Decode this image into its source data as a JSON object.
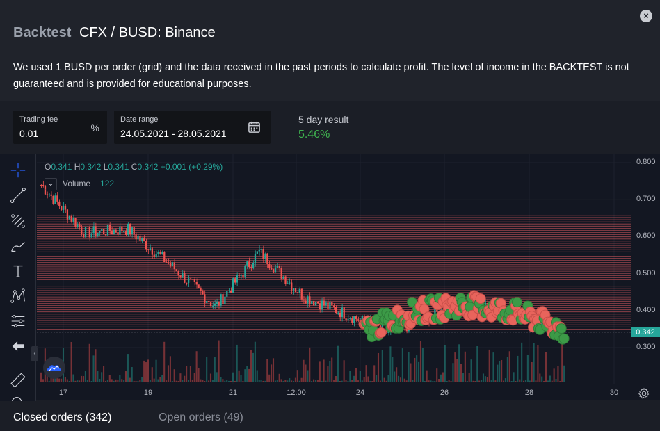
{
  "header": {
    "brand": "Backtest",
    "pair": "CFX / BUSD: Binance",
    "description": "We used 1 BUSD per order (grid) and the data received in the past periods to calculate profit. The level of income in the BACKTEST is not guaranteed and is provided for educational purposes."
  },
  "params": {
    "fee_label": "Trading fee",
    "fee_value": "0.01",
    "fee_suffix": "%",
    "date_label": "Date range",
    "date_value": "24.05.2021 - 28.05.2021",
    "result_label": "5 day result",
    "result_value": "5.46%"
  },
  "chart": {
    "ohlc": {
      "o": "0.341",
      "h": "0.342",
      "l": "0.341",
      "c": "0.342",
      "change": "+0.001 (+0.29%)"
    },
    "volume_label": "Volume",
    "volume_value": "122",
    "toggle_glyph": "⌄",
    "current_price": "0.342",
    "price_ticks": [
      "0.800",
      "0.700",
      "0.600",
      "0.500",
      "0.400",
      "0.300"
    ],
    "time_ticks": [
      "17",
      "19",
      "21",
      "12:00",
      "24",
      "26",
      "28",
      "30"
    ],
    "colors": {
      "up": "#26a69a",
      "down": "#ef5350",
      "buy": "#3c9a47",
      "sell": "#e8645c",
      "grid_line": "#b84f54"
    }
  },
  "chart_data": {
    "type": "candlestick",
    "x": [
      "16",
      "17",
      "18",
      "19",
      "20",
      "21",
      "22",
      "23",
      "24",
      "25",
      "26",
      "27",
      "28"
    ],
    "series": [
      {
        "values": [
          0.74,
          0.61,
          0.62,
          0.52,
          0.41,
          0.56,
          0.44,
          0.39,
          0.34,
          0.39,
          0.41,
          0.39,
          0.34
        ]
      }
    ],
    "ylim": [
      0.22,
      0.81
    ],
    "current": 0.342
  },
  "tabs": {
    "closed": "Closed orders (342)",
    "open": "Open orders (49)"
  }
}
